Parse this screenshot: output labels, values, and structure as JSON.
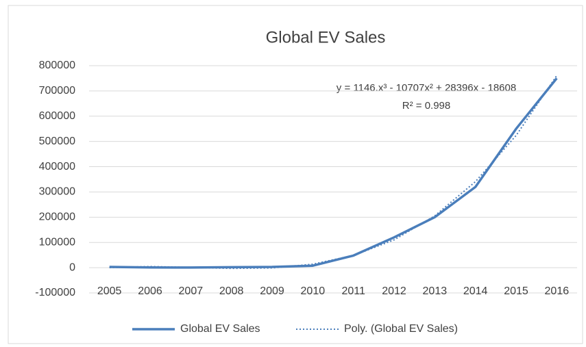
{
  "chart_data": {
    "type": "line",
    "title": "Global EV Sales",
    "categories": [
      "2005",
      "2006",
      "2007",
      "2008",
      "2009",
      "2010",
      "2011",
      "2012",
      "2013",
      "2014",
      "2015",
      "2016"
    ],
    "series": [
      {
        "name": "Global EV Sales",
        "color": "#4a7ebb",
        "style": "solid",
        "values": [
          3000,
          1000,
          500,
          2000,
          3000,
          8000,
          48000,
          120000,
          200000,
          320000,
          550000,
          750000
        ]
      },
      {
        "name": "Poly. (Global EV Sales)",
        "color": "#4a7ebb",
        "style": "dotted",
        "values": [
          227,
          4524,
          1159,
          -2992,
          -1053,
          13852,
          48599,
          110064,
          205123,
          340652,
          523527,
          760624
        ]
      }
    ],
    "annotations": [
      "y = 1146.x³ - 10707x² + 28396x - 18608",
      "R² = 0.998"
    ],
    "ylim": [
      -100000,
      800000
    ],
    "yticks": [
      -100000,
      0,
      100000,
      200000,
      300000,
      400000,
      500000,
      600000,
      700000,
      800000
    ],
    "grid": true,
    "legend": "bottom"
  }
}
